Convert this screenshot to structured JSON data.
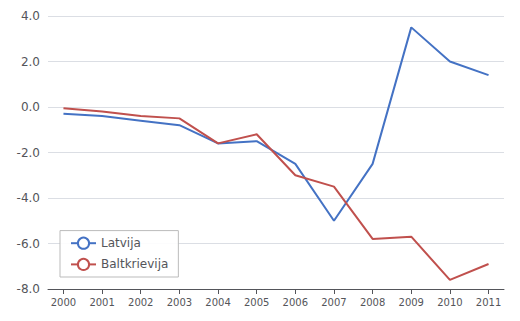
{
  "chart_data": {
    "type": "line",
    "x": [
      2000,
      2001,
      2002,
      2003,
      2004,
      2005,
      2006,
      2007,
      2008,
      2009,
      2010,
      2011
    ],
    "series": [
      {
        "name": "Latvija",
        "color": "#4472C4",
        "values": [
          -0.3,
          -0.4,
          -0.6,
          -0.8,
          -1.6,
          -1.5,
          -2.5,
          -5.0,
          -2.5,
          3.5,
          2.0,
          1.4
        ]
      },
      {
        "name": "Baltkrievija",
        "color": "#C0504D",
        "values": [
          -0.05,
          -0.2,
          -0.4,
          -0.5,
          -1.6,
          -1.2,
          -3.0,
          -3.5,
          -5.8,
          -5.7,
          -7.6,
          -6.9
        ]
      }
    ],
    "xlim": [
      1999.6,
      2011.4
    ],
    "xticks": [
      2000,
      2001,
      2002,
      2003,
      2004,
      2005,
      2006,
      2007,
      2008,
      2009,
      2010,
      2011
    ],
    "ylim": [
      -8.0,
      4.0
    ],
    "yticks": [
      {
        "value": -8.0,
        "label": "-8.0"
      },
      {
        "value": -6.0,
        "label": "-6.0"
      },
      {
        "value": -4.0,
        "label": "-4.0"
      },
      {
        "value": -2.0,
        "label": "-2.0"
      },
      {
        "value": 0.0,
        "label": "0.0"
      },
      {
        "value": 2.0,
        "label": "2.0"
      },
      {
        "value": 4.0,
        "label": "4.0"
      }
    ],
    "grid": true,
    "legend": "lower left"
  }
}
